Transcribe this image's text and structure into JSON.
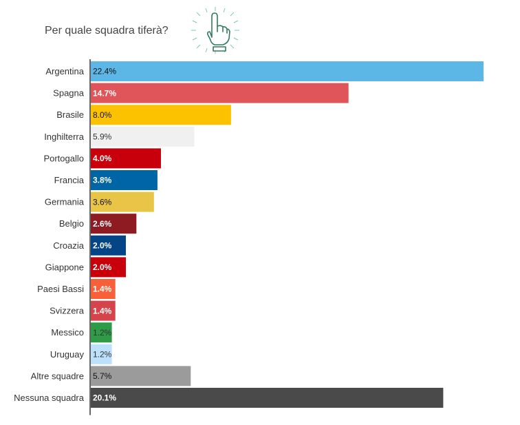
{
  "chart_title": "Per quale squadra tiferà?",
  "decor_icon": "pointing-hand-icon",
  "chart_data": {
    "type": "bar",
    "orientation": "horizontal",
    "title": "Per quale squadra tiferà?",
    "xlabel": "",
    "ylabel": "",
    "unit": "%",
    "grid": false,
    "legend": "none",
    "categories": [
      "Argentina",
      "Spagna",
      "Brasile",
      "Inghilterra",
      "Portogallo",
      "Francia",
      "Germania",
      "Belgio",
      "Croazia",
      "Giappone",
      "Paesi Bassi",
      "Svizzera",
      "Messico",
      "Uruguay",
      "Altre squadre",
      "Nessuna squadra"
    ],
    "values": [
      22.4,
      14.7,
      8.0,
      5.9,
      4.0,
      3.8,
      3.6,
      2.6,
      2.0,
      2.0,
      1.4,
      1.4,
      1.2,
      1.2,
      5.7,
      20.1
    ],
    "labels": [
      "22.4%",
      "14.7%",
      "8.0%",
      "5.9%",
      "4.0%",
      "3.8%",
      "3.6%",
      "2.6%",
      "2.0%",
      "2.0%",
      "1.4%",
      "1.4%",
      "1.2%",
      "1.2%",
      "5.7%",
      "20.1%"
    ],
    "colors": [
      "#5db7e6",
      "#e05559",
      "#fcc200",
      "#f0f0f0",
      "#c8000b",
      "#0065a4",
      "#e8c547",
      "#8e1a22",
      "#044587",
      "#c8000b",
      "#f86039",
      "#d4444a",
      "#2e9b47",
      "#bde1fb",
      "#9b9b9b",
      "#4a4a4a"
    ],
    "label_colors": [
      "#111111",
      "#ffffff",
      "#111111",
      "#333333",
      "#ffffff",
      "#ffffff",
      "#111111",
      "#ffffff",
      "#ffffff",
      "#ffffff",
      "#ffffff",
      "#ffffff",
      "#333333",
      "#333333",
      "#111111",
      "#ffffff"
    ],
    "xlim": [
      0,
      22.4
    ]
  }
}
